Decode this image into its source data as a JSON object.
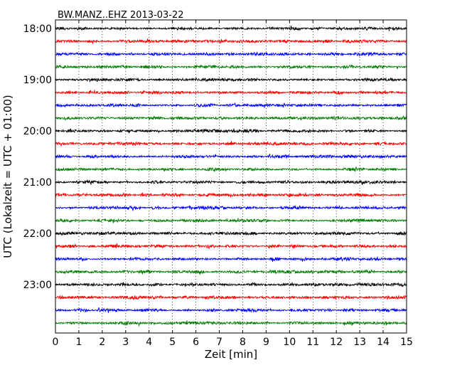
{
  "chart_data": {
    "type": "line",
    "title": "BW.MANZ..EHZ 2013-03-22",
    "xlabel": "Zeit  [min]",
    "ylabel": "UTC (Lokalzeit = UTC + 01:00)",
    "xlim": [
      0,
      15
    ],
    "x_ticks": [
      "0",
      "1",
      "2",
      "3",
      "4",
      "5",
      "6",
      "7",
      "8",
      "9",
      "10",
      "11",
      "12",
      "13",
      "14",
      "15"
    ],
    "y_ticks": [
      "18:00",
      "19:00",
      "20:00",
      "21:00",
      "22:00",
      "23:00"
    ],
    "grid": "vertical-dotted",
    "series_colors": [
      "#000000",
      "#ff0000",
      "#0000ff",
      "#008000"
    ],
    "trace_count": 24,
    "trace_minutes": 15
  }
}
